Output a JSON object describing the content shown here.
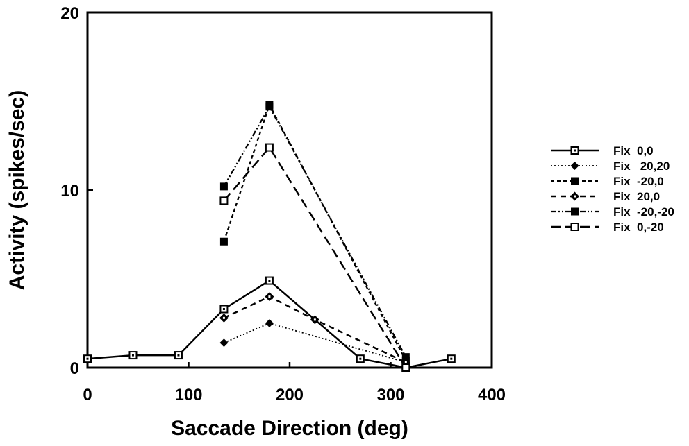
{
  "chart_data": {
    "type": "line",
    "title": "",
    "xlabel": "Saccade  Direction  (deg)",
    "ylabel": "Activity   (spikes/sec)",
    "xlim": [
      0,
      400
    ],
    "ylim": [
      0,
      20
    ],
    "x_ticks": [
      "0",
      "100",
      "200",
      "300",
      "400"
    ],
    "y_ticks": [
      "0",
      "10",
      "20"
    ],
    "grid": false,
    "legend_position": "right",
    "series": [
      {
        "name": "Fix  0,0",
        "line": "solid",
        "marker": "square-open-dot",
        "points": [
          [
            0,
            0.5
          ],
          [
            45,
            0.7
          ],
          [
            90,
            0.7
          ],
          [
            135,
            3.3
          ],
          [
            180,
            4.9
          ],
          [
            270,
            0.5
          ],
          [
            315,
            0.0
          ],
          [
            360,
            0.5
          ]
        ]
      },
      {
        "name": "Fix   20,20",
        "line": "dotted",
        "marker": "diamond-filled",
        "points": [
          [
            135,
            1.4
          ],
          [
            180,
            2.5
          ],
          [
            315,
            0.3
          ]
        ]
      },
      {
        "name": "Fix  -20,0",
        "line": "dashed-short",
        "marker": "square-filled",
        "points": [
          [
            135,
            7.1
          ],
          [
            180,
            14.8
          ],
          [
            315,
            0.4
          ]
        ]
      },
      {
        "name": "Fix  20,0",
        "line": "dashed",
        "marker": "diamond-dot",
        "points": [
          [
            135,
            2.8
          ],
          [
            180,
            4.0
          ],
          [
            225,
            2.7
          ],
          [
            315,
            0.3
          ]
        ]
      },
      {
        "name": "Fix  -20,-20",
        "line": "dash-dot-dot",
        "marker": "square-filled",
        "points": [
          [
            135,
            10.2
          ],
          [
            180,
            14.7
          ],
          [
            315,
            0.6
          ]
        ]
      },
      {
        "name": "Fix  0,-20",
        "line": "dashed-long",
        "marker": "square-open",
        "points": [
          [
            135,
            9.4
          ],
          [
            180,
            12.4
          ],
          [
            315,
            0.0
          ]
        ]
      }
    ]
  }
}
